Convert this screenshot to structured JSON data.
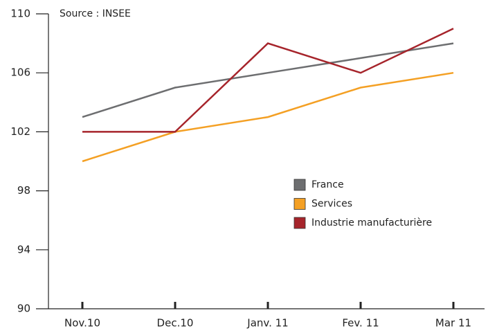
{
  "chart_data": {
    "type": "line",
    "annotation": "Source : INSEE",
    "categories": [
      "Nov.10",
      "Dec.10",
      "Janv. 11",
      "Fev. 11",
      "Mar 11"
    ],
    "series": [
      {
        "name": "France",
        "color": "#6d6e70",
        "values": [
          103,
          105,
          106,
          107,
          108
        ]
      },
      {
        "name": "Services",
        "color": "#f4a024",
        "values": [
          100,
          102,
          103,
          105,
          106
        ]
      },
      {
        "name": "Industrie manufacturière",
        "color": "#a6242b",
        "values": [
          102,
          102,
          108,
          106,
          109
        ]
      }
    ],
    "ylim": [
      90,
      110
    ],
    "yticks": [
      90,
      94,
      98,
      102,
      106,
      110
    ],
    "grid": false,
    "legend": "center-right"
  }
}
